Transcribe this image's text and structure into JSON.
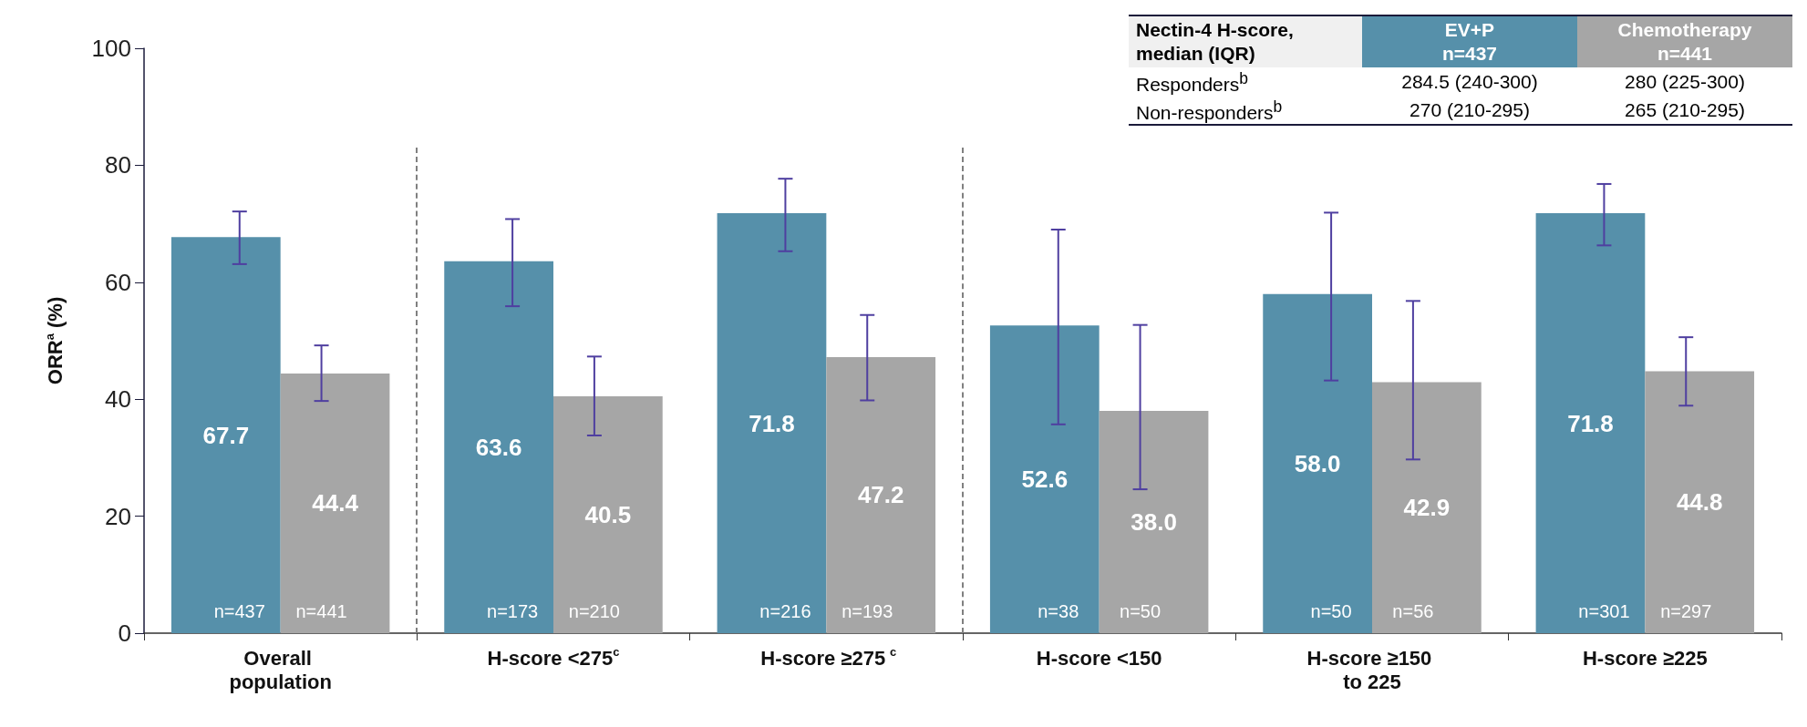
{
  "chart_data": {
    "type": "bar",
    "ylabel": "ORR$^{a}$ (%)",
    "categories": [
      "Overall population",
      "H-score <275$^{c}$",
      "H-score ≥275$^{c}$",
      "H-score <150",
      "H-score ≥150 to 225",
      "H-score ≥225"
    ],
    "series": [
      {
        "name": "EV+P",
        "color": "#5690aa",
        "values": [
          67.7,
          63.6,
          71.8,
          52.6,
          58.0,
          71.8
        ],
        "value_labels": [
          "67.7",
          "63.6",
          "71.8",
          "52.6",
          "58.0",
          "71.8"
        ],
        "errors": [
          [
            63.1,
            72.1
          ],
          [
            55.9,
            70.8
          ],
          [
            65.3,
            77.7
          ],
          [
            35.7,
            69.0
          ],
          [
            43.2,
            71.9
          ],
          [
            66.3,
            76.8
          ]
        ]
      },
      {
        "name": "Chemotherapy",
        "color": "#a6a6a6",
        "values": [
          44.4,
          40.5,
          47.2,
          38.0,
          42.9,
          44.8
        ],
        "value_labels": [
          "44.4",
          "40.5",
          "47.2",
          "38.0",
          "42.9",
          "44.8"
        ],
        "errors": [
          [
            39.7,
            49.2
          ],
          [
            33.8,
            47.3
          ],
          [
            39.8,
            54.4
          ],
          [
            24.6,
            52.7
          ],
          [
            29.7,
            56.8
          ],
          [
            38.9,
            50.6
          ]
        ]
      }
    ],
    "ylim": [
      0,
      100
    ],
    "yticks": [
      0,
      20,
      40,
      60,
      80,
      100
    ],
    "grid": false,
    "legend": "top right",
    "annotations": [
      {
        "text": "n=437",
        "x": "Overall population",
        "y": 0
      },
      {
        "text": "n=441",
        "x": "Overall population",
        "y": 0
      },
      {
        "text": "n=173",
        "x": "H-score <275$^{c}$",
        "y": 0
      },
      {
        "text": "n=210",
        "x": "H-score <275$^{c}$",
        "y": 0
      },
      {
        "text": "n=216",
        "x": "H-score ≥275$^{c}$",
        "y": 0
      },
      {
        "text": "n=193",
        "x": "H-score ≥275$^{c}$",
        "y": 0
      },
      {
        "text": "n=38",
        "x": "H-score <150",
        "y": 0
      },
      {
        "text": "n=50",
        "x": "H-score <150",
        "y": 0
      },
      {
        "text": "n=50",
        "x": "H-score ≥150 to 225",
        "y": 0
      },
      {
        "text": "n=56",
        "x": "H-score ≥150 to 225",
        "y": 0
      },
      {
        "text": "n=301",
        "x": "H-score ≥225",
        "y": 0
      },
      {
        "text": "n=297",
        "x": "H-score ≥225",
        "y": 0
      },
      "Nectin-4 H-score, median (IQR)",
      "n=437",
      "n=441",
      "Responders$^{b}$",
      "284.5 (240-300)",
      "280 (225-300)",
      "Non-responders$^{b}$",
      "270 (210-295)",
      "265 (210-295)"
    ]
  }
}
